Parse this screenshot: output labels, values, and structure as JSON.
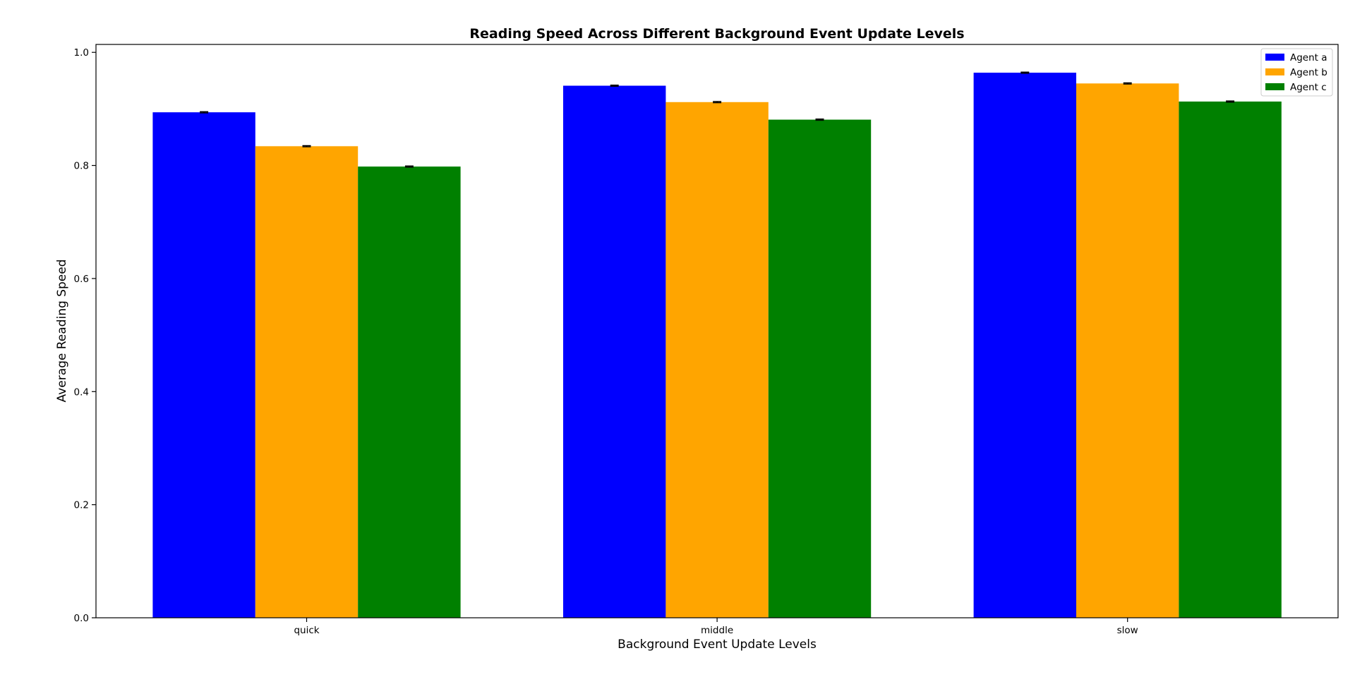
{
  "chart_data": {
    "type": "bar",
    "title": "Reading Speed Across Different Background Event Update Levels",
    "xlabel": "Background Event Update Levels",
    "ylabel": "Average Reading Speed",
    "categories": [
      "quick",
      "middle",
      "slow"
    ],
    "series": [
      {
        "name": "Agent a",
        "color": "#0000ff",
        "values": [
          0.894,
          0.941,
          0.964
        ],
        "errors": [
          0.001,
          0.001,
          0.001
        ]
      },
      {
        "name": "Agent b",
        "color": "#ffa500",
        "values": [
          0.834,
          0.912,
          0.945
        ],
        "errors": [
          0.001,
          0.001,
          0.001
        ]
      },
      {
        "name": "Agent c",
        "color": "#008000",
        "values": [
          0.798,
          0.881,
          0.913
        ],
        "errors": [
          0.001,
          0.001,
          0.001
        ]
      }
    ],
    "ylim": [
      0.0,
      1.014
    ],
    "yticks": [
      0.0,
      0.2,
      0.4,
      0.6,
      0.8,
      1.0
    ],
    "ytick_labels": [
      "0.0",
      "0.2",
      "0.4",
      "0.6",
      "0.8",
      "1.0"
    ],
    "grid": false,
    "legend_position": "top-right"
  }
}
